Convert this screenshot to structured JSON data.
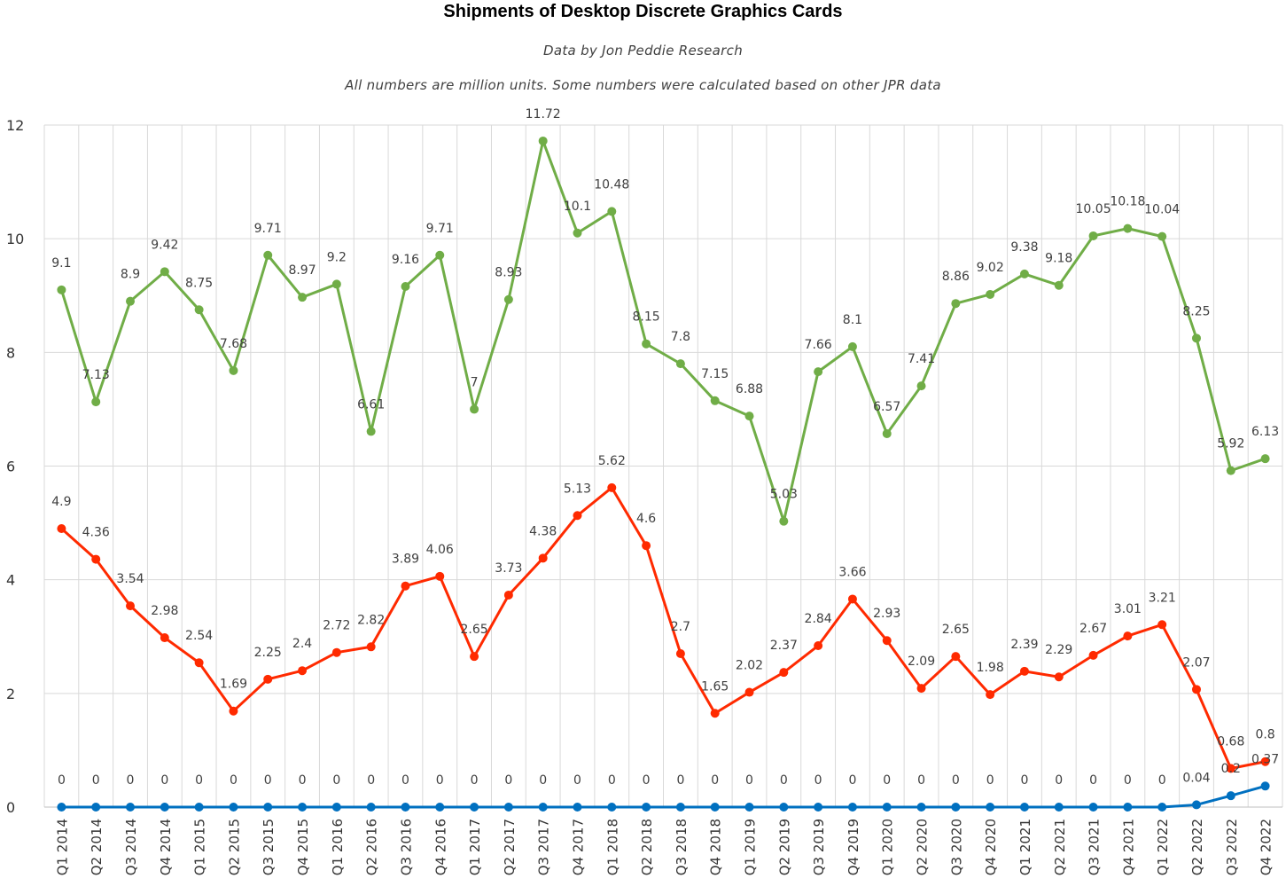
{
  "chart_data": {
    "type": "line",
    "title": "Shipments of Desktop Discrete Graphics Cards",
    "subtitle": "Data by Jon Peddie Research",
    "note": "All numbers are million units. Some numbers were calculated based on other JPR data",
    "xlabel": "",
    "ylabel": "",
    "ylim": [
      0,
      12
    ],
    "yticks": [
      "0",
      "2",
      "4",
      "6",
      "8",
      "10",
      "12"
    ],
    "grid": true,
    "legend": "none",
    "categories": [
      "Q1 2014",
      "Q2 2014",
      "Q3 2014",
      "Q4 2014",
      "Q1 2015",
      "Q2 2015",
      "Q3 2015",
      "Q4 2015",
      "Q1 2016",
      "Q2 2016",
      "Q3 2016",
      "Q4 2016",
      "Q1 2017",
      "Q2 2017",
      "Q3 2017",
      "Q4 2017",
      "Q1 2018",
      "Q2 2018",
      "Q3 2018",
      "Q4 2018",
      "Q1 2019",
      "Q2 2019",
      "Q3 2019",
      "Q4 2019",
      "Q1 2020",
      "Q2 2020",
      "Q3 2020",
      "Q4 2020",
      "Q1 2021",
      "Q2 2021",
      "Q3 2021",
      "Q4 2021",
      "Q1 2022",
      "Q2 2022",
      "Q3 2022",
      "Q4 2022"
    ],
    "series": [
      {
        "color": "#70ad47",
        "values": [
          9.1,
          7.13,
          8.9,
          9.42,
          8.75,
          7.68,
          9.71,
          8.97,
          9.2,
          6.61,
          9.16,
          9.71,
          7,
          8.93,
          11.72,
          10.1,
          10.48,
          8.15,
          7.8,
          7.15,
          6.88,
          5.03,
          7.66,
          8.1,
          6.57,
          7.41,
          8.86,
          9.02,
          9.38,
          9.18,
          10.05,
          10.18,
          10.04,
          8.25,
          5.92,
          6.13
        ],
        "labels": [
          "9.1",
          "7.13",
          "8.9",
          "9.42",
          "8.75",
          "7.68",
          "9.71",
          "8.97",
          "9.2",
          "6.61",
          "9.16",
          "9.71",
          "7",
          "8.93",
          "11.72",
          "10.1",
          "10.48",
          "8.15",
          "7.8",
          "7.15",
          "6.88",
          "5.03",
          "7.66",
          "8.1",
          "6.57",
          "7.41",
          "8.86",
          "9.02",
          "9.38",
          "9.18",
          "10.05",
          "10.18",
          "10.04",
          "8.25",
          "5.92",
          "6.13"
        ]
      },
      {
        "color": "#ff2a00",
        "values": [
          4.9,
          4.36,
          3.54,
          2.98,
          2.54,
          1.69,
          2.25,
          2.4,
          2.72,
          2.82,
          3.89,
          4.06,
          2.65,
          3.73,
          4.38,
          5.13,
          5.62,
          4.6,
          2.7,
          1.65,
          2.02,
          2.37,
          2.84,
          3.66,
          2.93,
          2.09,
          2.65,
          1.98,
          2.39,
          2.29,
          2.67,
          3.01,
          3.21,
          2.07,
          0.68,
          0.8
        ],
        "labels": [
          "4.9",
          "4.36",
          "3.54",
          "2.98",
          "2.54",
          "1.69",
          "2.25",
          "2.4",
          "2.72",
          "2.82",
          "3.89",
          "4.06",
          "2.65",
          "3.73",
          "4.38",
          "5.13",
          "5.62",
          "4.6",
          "2.7",
          "1.65",
          "2.02",
          "2.37",
          "2.84",
          "3.66",
          "2.93",
          "2.09",
          "2.65",
          "1.98",
          "2.39",
          "2.29",
          "2.67",
          "3.01",
          "3.21",
          "2.07",
          "0.68",
          "0.8"
        ]
      },
      {
        "color": "#0070c0",
        "values": [
          0,
          0,
          0,
          0,
          0,
          0,
          0,
          0,
          0,
          0,
          0,
          0,
          0,
          0,
          0,
          0,
          0,
          0,
          0,
          0,
          0,
          0,
          0,
          0,
          0,
          0,
          0,
          0,
          0,
          0,
          0,
          0,
          0,
          0.04,
          0.2,
          0.37
        ],
        "labels": [
          "0",
          "0",
          "0",
          "0",
          "0",
          "0",
          "0",
          "0",
          "0",
          "0",
          "0",
          "0",
          "0",
          "0",
          "0",
          "0",
          "0",
          "0",
          "0",
          "0",
          "0",
          "0",
          "0",
          "0",
          "0",
          "0",
          "0",
          "0",
          "0",
          "0",
          "0",
          "0",
          "0",
          "0.04",
          "0.2",
          "0.37"
        ]
      }
    ]
  }
}
